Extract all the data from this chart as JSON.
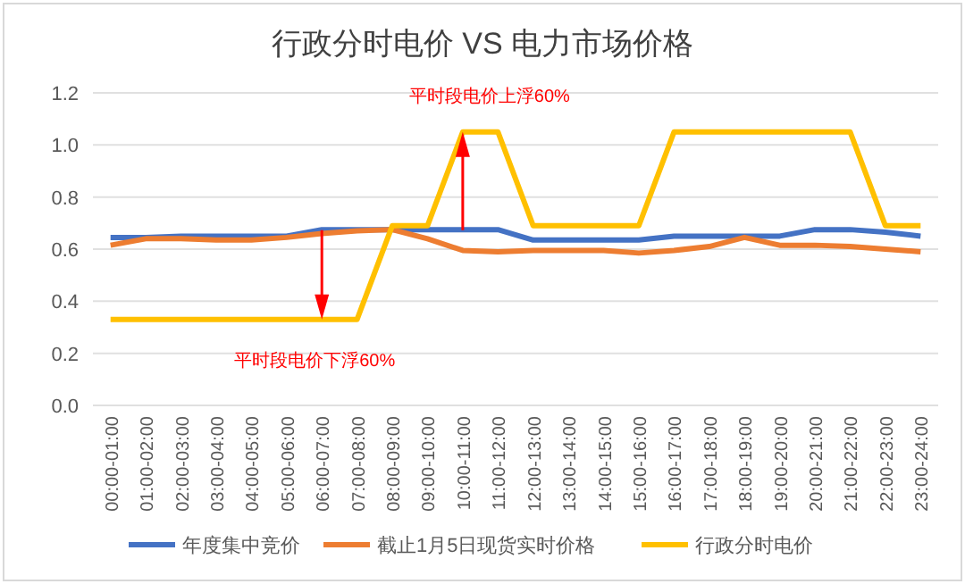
{
  "chart_data": {
    "type": "line",
    "title": "行政分时电价 VS 电力市场价格",
    "categories": [
      "00:00-01:00",
      "01:00-02:00",
      "02:00-03:00",
      "03:00-04:00",
      "04:00-05:00",
      "05:00-06:00",
      "06:00-07:00",
      "07:00-08:00",
      "08:00-09:00",
      "09:00-10:00",
      "10:00-11:00",
      "11:00-12:00",
      "12:00-13:00",
      "13:00-14:00",
      "14:00-15:00",
      "15:00-16:00",
      "16:00-17:00",
      "17:00-18:00",
      "18:00-19:00",
      "19:00-20:00",
      "20:00-21:00",
      "21:00-22:00",
      "22:00-23:00",
      "23:00-24:00"
    ],
    "series": [
      {
        "name": "年度集中竞价",
        "color": "#4472c4",
        "values": [
          0.645,
          0.645,
          0.65,
          0.65,
          0.65,
          0.65,
          0.675,
          0.675,
          0.675,
          0.675,
          0.675,
          0.675,
          0.635,
          0.635,
          0.635,
          0.635,
          0.65,
          0.65,
          0.65,
          0.65,
          0.675,
          0.675,
          0.665,
          0.65
        ]
      },
      {
        "name": "截止1月5日现货实时价格",
        "color": "#ed7d31",
        "values": [
          0.615,
          0.64,
          0.64,
          0.635,
          0.635,
          0.645,
          0.66,
          0.67,
          0.675,
          0.64,
          0.595,
          0.59,
          0.595,
          0.595,
          0.595,
          0.585,
          0.595,
          0.61,
          0.645,
          0.615,
          0.615,
          0.61,
          0.6,
          0.59
        ]
      },
      {
        "name": "行政分时电价",
        "color": "#ffc000",
        "values": [
          0.33,
          0.33,
          0.33,
          0.33,
          0.33,
          0.33,
          0.33,
          0.33,
          0.69,
          0.69,
          1.05,
          1.05,
          0.69,
          0.69,
          0.69,
          0.69,
          1.05,
          1.05,
          1.05,
          1.05,
          1.05,
          1.05,
          0.69,
          0.69
        ]
      }
    ],
    "ylim": [
      0,
      1.2
    ],
    "yticks": [
      {
        "value": 0,
        "label": "0.0"
      },
      {
        "value": 0.2,
        "label": "0.2"
      },
      {
        "value": 0.4,
        "label": "0.4"
      },
      {
        "value": 0.6,
        "label": "0.6"
      },
      {
        "value": 0.8,
        "label": "0.8"
      },
      {
        "value": 1,
        "label": "1.0"
      },
      {
        "value": 1.2,
        "label": "1.2"
      }
    ],
    "grid": "y",
    "legend": "bottom",
    "marker": "none",
    "line_style": "solid",
    "annotations": [
      {
        "text": "平时段电价上浮60%",
        "x": "10:00-11:00",
        "y": 1.05
      },
      {
        "text": "平时段电价下浮60%",
        "x": "06:00-07:00",
        "y": 0.33
      }
    ]
  }
}
